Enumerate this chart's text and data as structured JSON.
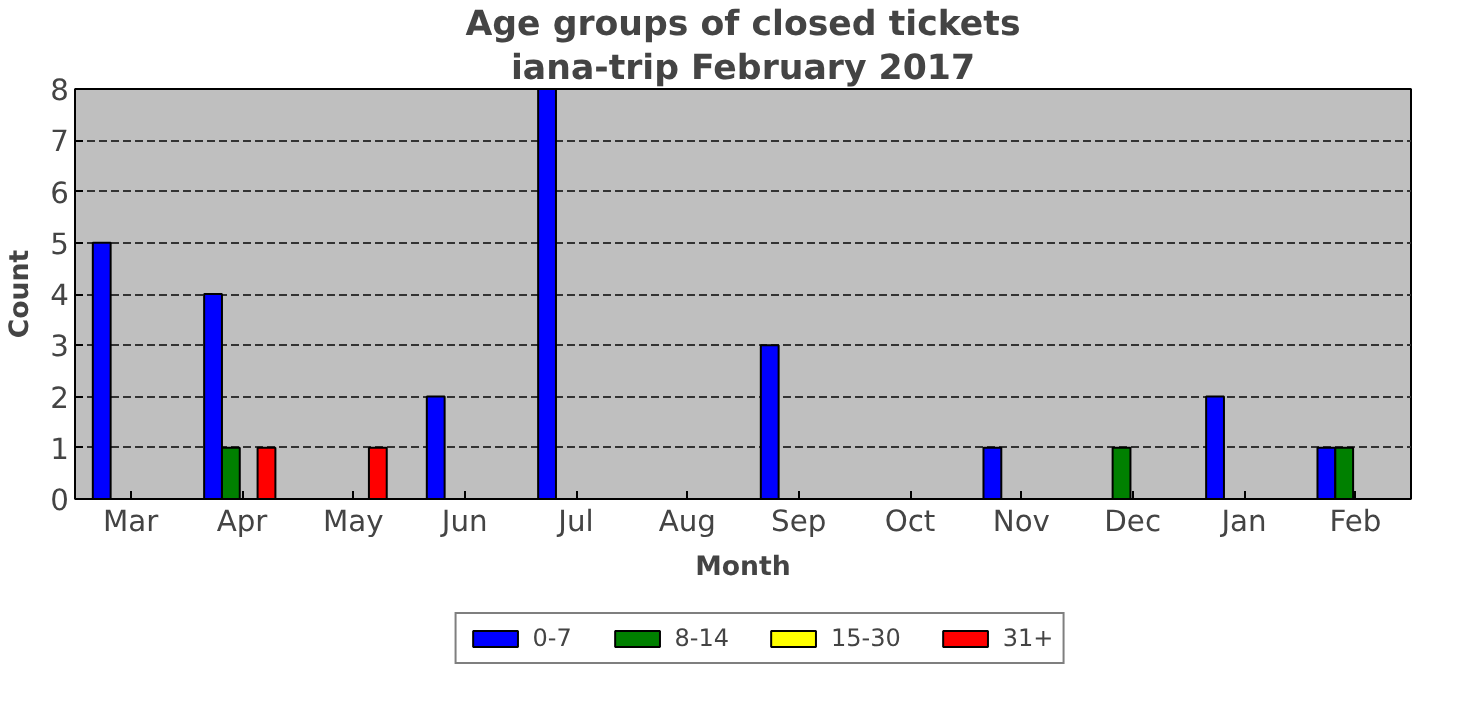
{
  "chart_data": {
    "type": "bar",
    "title": "Age groups of closed tickets",
    "subtitle": "iana-trip February 2017",
    "xlabel": "Month",
    "ylabel": "Count",
    "categories": [
      "Mar",
      "Apr",
      "May",
      "Jun",
      "Jul",
      "Aug",
      "Sep",
      "Oct",
      "Nov",
      "Dec",
      "Jan",
      "Feb"
    ],
    "series": [
      {
        "name": "0-7",
        "color": "#0000ff",
        "values": [
          5,
          4,
          0,
          2,
          8,
          0,
          3,
          0,
          1,
          0,
          2,
          1
        ]
      },
      {
        "name": "8-14",
        "color": "#008000",
        "values": [
          0,
          1,
          0,
          0,
          0,
          0,
          0,
          0,
          0,
          1,
          0,
          1
        ]
      },
      {
        "name": "15-30",
        "color": "#ffff00",
        "values": [
          0,
          0,
          0,
          0,
          0,
          0,
          0,
          0,
          0,
          0,
          0,
          0
        ]
      },
      {
        "name": "31+",
        "color": "#ff0000",
        "values": [
          0,
          1,
          1,
          0,
          0,
          0,
          0,
          0,
          0,
          0,
          0,
          0
        ]
      }
    ],
    "ylim": [
      0,
      8
    ],
    "yticks": [
      0,
      1,
      2,
      3,
      4,
      5,
      6,
      7,
      8
    ],
    "grid": "y",
    "legend": "bottom"
  }
}
